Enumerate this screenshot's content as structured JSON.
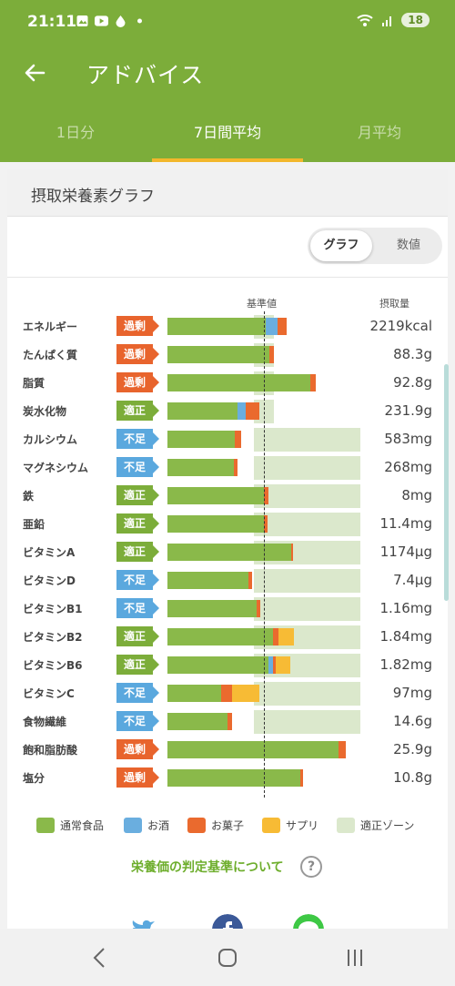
{
  "status_bar": {
    "time": "21:11",
    "battery": "18"
  },
  "app_bar": {
    "title": "アドバイス"
  },
  "tabs": [
    {
      "label": "1日分",
      "active": false
    },
    {
      "label": "7日間平均",
      "active": true
    },
    {
      "label": "月平均",
      "active": false
    }
  ],
  "card": {
    "title": "摂取栄養素グラフ",
    "toggle": {
      "graph": "グラフ",
      "numbers": "数値",
      "selected": "グラフ"
    },
    "col_standard": "基準値",
    "col_intake": "摂取量"
  },
  "status_labels": {
    "over": "過剰",
    "ok": "適正",
    "under": "不足"
  },
  "colors": {
    "food": "#8ab94a",
    "alcohol": "#6aaedf",
    "snacks": "#ea6a2e",
    "supplement": "#f7bb35",
    "zone": "#dbe8cc",
    "over_tag": "#e8642d",
    "ok_tag": "#7cad3a",
    "under_tag": "#5aa8de"
  },
  "chart_data": {
    "type": "bar",
    "reference_percent": 100,
    "categories": [
      "エネルギー",
      "たんぱく質",
      "脂質",
      "炭水化物",
      "カルシウム",
      "マグネシウム",
      "鉄",
      "亜鉛",
      "ビタミンA",
      "ビタミンD",
      "ビタミンB1",
      "ビタミンB2",
      "ビタミンB6",
      "ビタミンC",
      "食物繊維",
      "飽和脂肪酸",
      "塩分"
    ],
    "status": [
      "over",
      "over",
      "over",
      "ok",
      "under",
      "under",
      "ok",
      "ok",
      "ok",
      "under",
      "under",
      "ok",
      "ok",
      "under",
      "under",
      "over",
      "over"
    ],
    "intake": [
      "2219kcal",
      "88.3g",
      "92.8g",
      "231.9g",
      "583mg",
      "268mg",
      "8mg",
      "11.4mg",
      "1174μg",
      "7.4μg",
      "1.16mg",
      "1.84mg",
      "1.82mg",
      "97mg",
      "14.6g",
      "25.9g",
      "10.8g"
    ],
    "zone_percent": [
      [
        90,
        110
      ],
      [
        90,
        110
      ],
      [
        90,
        110
      ],
      [
        90,
        110
      ],
      [
        90,
        200
      ],
      [
        90,
        200
      ],
      [
        90,
        200
      ],
      [
        90,
        200
      ],
      [
        90,
        200
      ],
      [
        90,
        200
      ],
      [
        90,
        200
      ],
      [
        90,
        200
      ],
      [
        90,
        200
      ],
      [
        90,
        200
      ],
      [
        90,
        200
      ],
      [
        0,
        0
      ],
      [
        0,
        0
      ]
    ],
    "series": [
      {
        "name": "通常食品",
        "values": [
          102,
          106,
          148,
          73,
          70,
          69,
          100,
          100,
          128,
          84,
          92,
          109,
          105,
          56,
          62,
          177,
          138
        ]
      },
      {
        "name": "お酒",
        "values": [
          12,
          0,
          0,
          8,
          0,
          0,
          0,
          0,
          0,
          0,
          0,
          0,
          4,
          0,
          0,
          0,
          0
        ]
      },
      {
        "name": "お菓子",
        "values": [
          10,
          4,
          6,
          14,
          6,
          4,
          5,
          4,
          2,
          4,
          4,
          6,
          3,
          11,
          5,
          8,
          3
        ]
      },
      {
        "name": "サプリ",
        "values": [
          0,
          0,
          0,
          0,
          0,
          0,
          0,
          0,
          0,
          0,
          0,
          16,
          15,
          28,
          0,
          0,
          0
        ]
      }
    ]
  },
  "legend": [
    {
      "label": "通常食品",
      "color_key": "food"
    },
    {
      "label": "お酒",
      "color_key": "alcohol"
    },
    {
      "label": "お菓子",
      "color_key": "snacks"
    },
    {
      "label": "サプリ",
      "color_key": "supplement"
    },
    {
      "label": "適正ゾーン",
      "color_key": "zone"
    }
  ],
  "criteria_link": "栄養価の判定基準について",
  "help_glyph": "?"
}
